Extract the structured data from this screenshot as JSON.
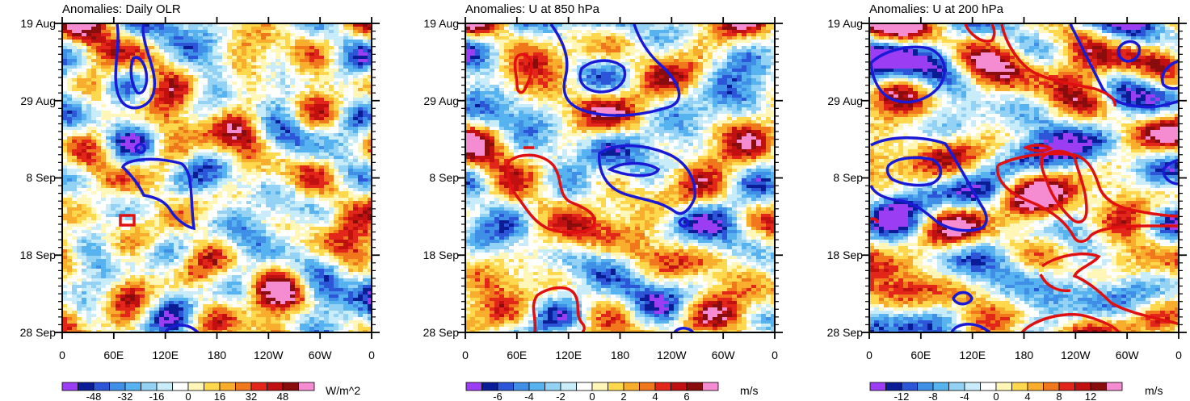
{
  "chart_data": [
    {
      "type": "heatmap",
      "title": "Anomalies: Daily OLR",
      "x_ticks": [
        "0",
        "60E",
        "120E",
        "180",
        "120W",
        "60W",
        "0"
      ],
      "y_ticks": [
        "19 Aug",
        "29 Aug",
        "8 Sep",
        "18 Sep",
        "28 Sep"
      ],
      "colorbar": {
        "labels": [
          "-48",
          "-32",
          "-16",
          "0",
          "16",
          "32",
          "48"
        ],
        "units": "W/m^2"
      },
      "field_seed": 11
    },
    {
      "type": "heatmap",
      "title": "Anomalies: U at 850 hPa",
      "x_ticks": [
        "0",
        "60E",
        "120E",
        "180",
        "120W",
        "60W",
        "0"
      ],
      "y_ticks": [
        "19 Aug",
        "29 Aug",
        "8 Sep",
        "18 Sep",
        "28 Sep"
      ],
      "colorbar": {
        "labels": [
          "-6",
          "-4",
          "-2",
          "0",
          "2",
          "4",
          "6"
        ],
        "units": "m/s"
      },
      "field_seed": 23
    },
    {
      "type": "heatmap",
      "title": "Anomalies: U at 200 hPa",
      "x_ticks": [
        "0",
        "60E",
        "120E",
        "180",
        "120W",
        "60W",
        "0"
      ],
      "y_ticks": [
        "19 Aug",
        "29 Aug",
        "8 Sep",
        "18 Sep",
        "28 Sep"
      ],
      "colorbar": {
        "labels": [
          "-12",
          "-8",
          "-4",
          "0",
          "4",
          "8",
          "12"
        ],
        "units": "m/s"
      },
      "field_seed": 37
    }
  ],
  "palette": [
    "#9b3df2",
    "#0b1d96",
    "#2c55d8",
    "#3f8fe6",
    "#56b3ef",
    "#93d2f5",
    "#c9ecfb",
    "#ffffff",
    "#fff6b8",
    "#ffd84d",
    "#f8ad2c",
    "#f0771c",
    "#e3261a",
    "#c01010",
    "#8a0d0d",
    "#f58cd2"
  ]
}
